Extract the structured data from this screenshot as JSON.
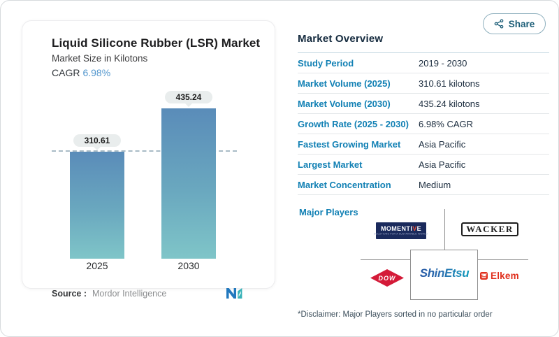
{
  "share": {
    "label": "Share"
  },
  "chart_card": {
    "title": "Liquid Silicone Rubber (LSR) Market",
    "subtitle": "Market Size in Kilotons",
    "cagr_label": "CAGR",
    "cagr_value": "6.98%",
    "source_label": "Source :",
    "source_value": "Mordor Intelligence"
  },
  "chart_data": {
    "type": "bar",
    "title": "Liquid Silicone Rubber (LSR) Market",
    "subtitle": "Market Size in Kilotons",
    "cagr": "6.98%",
    "categories": [
      "2025",
      "2030"
    ],
    "values": [
      310.61,
      435.24
    ],
    "unit": "kilotons",
    "ylabel": "Kilotons",
    "ylim": [
      0,
      435.24
    ],
    "grid": "off",
    "annotations": [
      "dashed reference line at 310.61"
    ],
    "bar_gradient_top": "#5a8cb9",
    "bar_gradient_bottom": "#7fc5c8"
  },
  "overview": {
    "heading": "Market Overview",
    "rows": [
      {
        "label": "Study Period",
        "value": "2019 - 2030"
      },
      {
        "label": "Market Volume (2025)",
        "value": "310.61 kilotons"
      },
      {
        "label": "Market Volume (2030)",
        "value": "435.24 kilotons"
      },
      {
        "label": "Growth Rate (2025 - 2030)",
        "value": "6.98% CAGR"
      },
      {
        "label": "Fastest Growing Market",
        "value": "Asia Pacific"
      },
      {
        "label": "Largest Market",
        "value": "Asia Pacific"
      },
      {
        "label": "Market Concentration",
        "value": "Medium"
      }
    ],
    "major_players_label": "Major Players",
    "players": {
      "momentive": {
        "part1": "MOMENTI",
        "part2": "V",
        "part3": "E",
        "tagline": "SOLUTIONS FOR A SUSTAINABLE WORLD"
      },
      "wacker": {
        "name": "WACKER"
      },
      "dow": {
        "name": "DOW"
      },
      "shinetsu": {
        "part1": "Shin",
        "part2": "Etsu"
      },
      "elkem": {
        "name": "Elkem"
      }
    },
    "disclaimer": "*Disclaimer: Major Players sorted in no particular order"
  },
  "colors": {
    "accent_blue_label": "#1180b4",
    "cagr_value_blue": "#5598ce",
    "dark_navy_text": "#1a2b3d",
    "share_teal": "#1d5e78",
    "momentive_navy": "#1a2a5c",
    "dow_red": "#d41a38",
    "elkem_red": "#e0301e",
    "mordor_blue": "#2178be",
    "mordor_teal": "#38b2b8"
  }
}
